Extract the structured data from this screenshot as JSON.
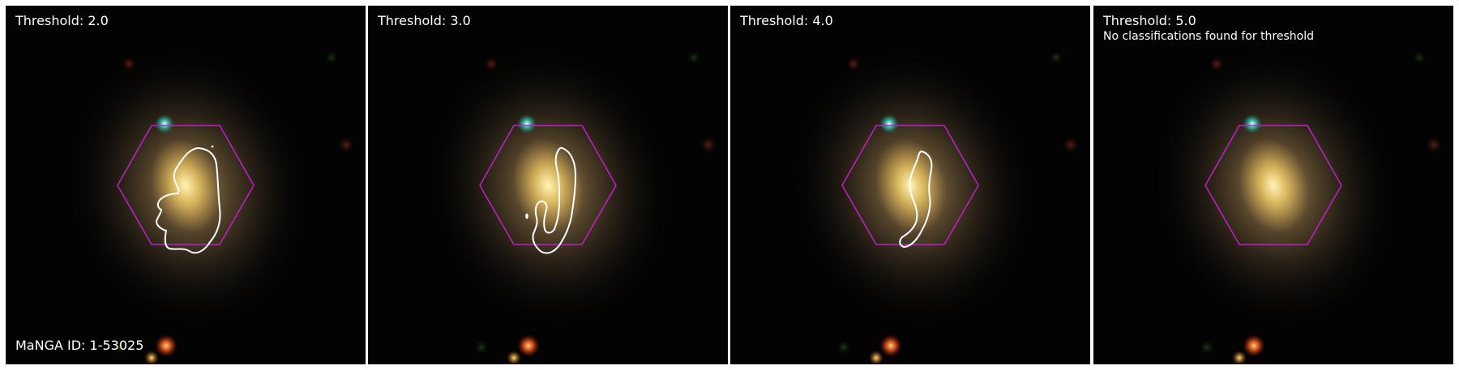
{
  "figure": {
    "manga_id_label": "MaNGA ID: 1-53025",
    "panels": [
      {
        "title": "Threshold: 2.0",
        "note": ""
      },
      {
        "title": "Threshold: 3.0",
        "note": ""
      },
      {
        "title": "Threshold: 4.0",
        "note": ""
      },
      {
        "title": "Threshold: 5.0",
        "note": "No classifications found for threshold"
      }
    ]
  },
  "colors": {
    "hexagon": "#c020c8",
    "contour": "#ffffff",
    "background": "#030303",
    "galaxy_core": "#fff2a8"
  }
}
